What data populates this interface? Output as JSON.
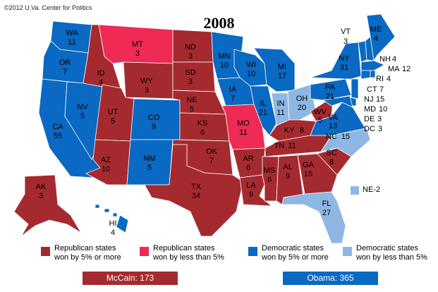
{
  "credit": "©2012 U.Va. Center for Politics",
  "title": "2008",
  "colors": {
    "rep_strong": "#a52a2f",
    "rep_lean": "#ee2a55",
    "dem_strong": "#0a69c2",
    "dem_lean": "#8eb7e4"
  },
  "states": {
    "WA": "11",
    "OR": "7",
    "CA": "55",
    "NV": "5",
    "ID": "4",
    "MT": "3",
    "WY": "3",
    "UT": "5",
    "CO": "9",
    "AZ": "10",
    "NM": "5",
    "ND": "3",
    "SD": "3",
    "NE": "5",
    "KS": "6",
    "OK": "7",
    "TX": "34",
    "MN": "10",
    "IA": "7",
    "MO": "11",
    "AR": "6",
    "LA": "9",
    "WI": "10",
    "IL": "21",
    "MI": "17",
    "IN": "11",
    "OH": "20",
    "KY": "8",
    "TN": "11",
    "MS": "6",
    "AL": "9",
    "GA": "15",
    "FL": "27",
    "SC": "8",
    "NC": "15",
    "VA": "13",
    "WV": "5",
    "PA": "21",
    "NY": "31",
    "VT": "3",
    "ME": "4",
    "NH": "4",
    "MA": "12",
    "RI": "4",
    "CT": "7",
    "NJ": "15",
    "MD": "10",
    "DE": "3",
    "DC": "3",
    "AK": "3",
    "HI": "4"
  },
  "ne2_label": "NE-2",
  "legend": {
    "rep_strong_line1": "Republican states",
    "rep_strong_line2": "won by 5% or more",
    "rep_lean_line1": "Republican states",
    "rep_lean_line2": "won by less than 5%",
    "dem_strong_line1": "Democratic states",
    "dem_strong_line2": "won by 5% or more",
    "dem_lean_line1": "Democratic states",
    "dem_lean_line2": "won by less than 5%"
  },
  "tally": {
    "mccain": "McCain: 173",
    "obama": "Obama: 365"
  }
}
